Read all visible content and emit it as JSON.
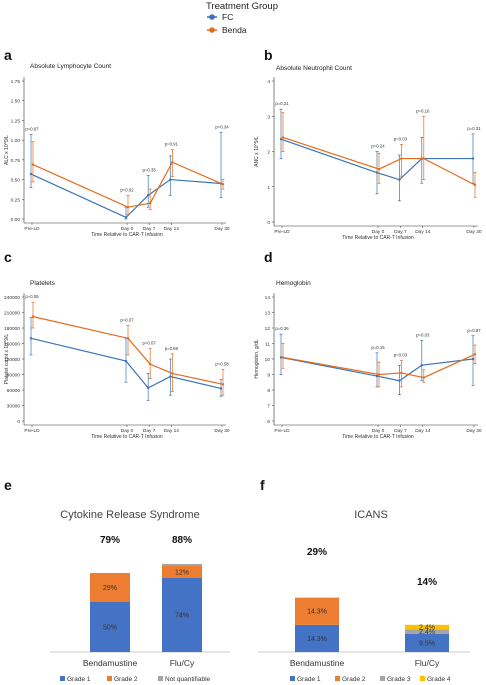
{
  "legend": {
    "title": "Treatment Group",
    "items": [
      {
        "label": "FC",
        "color": "#3b73b9"
      },
      {
        "label": "Benda",
        "color": "#e36c1b"
      }
    ]
  },
  "chart_data": [
    {
      "panel": "a",
      "type": "line",
      "title": "Absolute Lymphocyte Count",
      "xlabel": "Time Relative to CAR-T Infusion",
      "ylabel": "ALC x 10^9/L",
      "categories": [
        "Pre-LD",
        "Day 0",
        "Day 7",
        "Day 14",
        "Day 30"
      ],
      "x_positions": [
        -30,
        0,
        7,
        14,
        30
      ],
      "ylim": [
        0,
        1.75
      ],
      "yticks": [
        "0.00",
        "0.25",
        "0.50",
        "0.75",
        "1.00",
        "1.25",
        "1.50",
        "1.75"
      ],
      "series": [
        {
          "name": "FC",
          "color": "#3b73b9",
          "values": [
            0.57,
            0.02,
            0.3,
            0.5,
            0.45
          ],
          "err": [
            [
              0.4,
              1.07
            ],
            [
              0.0,
              0.15
            ],
            [
              0.15,
              0.55
            ],
            [
              0.3,
              0.8
            ],
            [
              0.27,
              1.1
            ]
          ]
        },
        {
          "name": "Benda",
          "color": "#e36c1b",
          "values": [
            0.69,
            0.15,
            0.2,
            0.72,
            0.44
          ],
          "err": [
            [
              0.47,
              0.98
            ],
            [
              0.06,
              0.3
            ],
            [
              0.12,
              0.38
            ],
            [
              0.54,
              0.88
            ],
            [
              0.38,
              0.5
            ]
          ]
        }
      ],
      "annotations": [
        "p=0.97",
        "p=0.02",
        "p=0.35",
        "p=0.91",
        "p=0.34"
      ]
    },
    {
      "panel": "b",
      "type": "line",
      "title": "Absolute Neutrophil Count",
      "xlabel": "Time Relative to CAR-T Infusion",
      "ylabel": "ANC x 10^9/L",
      "categories": [
        "Pre-LD",
        "Day 0",
        "Day 7",
        "Day 14",
        "Day 30"
      ],
      "x_positions": [
        -30,
        0,
        7,
        14,
        30
      ],
      "ylim": [
        0,
        4
      ],
      "yticks": [
        "0",
        "1",
        "2",
        "3",
        "4"
      ],
      "series": [
        {
          "name": "FC",
          "color": "#3b73b9",
          "values": [
            2.35,
            1.4,
            1.2,
            1.8,
            1.8
          ],
          "err": [
            [
              1.8,
              3.2
            ],
            [
              0.8,
              2.0
            ],
            [
              0.6,
              1.9
            ],
            [
              1.1,
              2.4
            ],
            [
              1.1,
              2.5
            ]
          ]
        },
        {
          "name": "Benda",
          "color": "#e36c1b",
          "values": [
            2.4,
            1.5,
            1.8,
            1.8,
            1.05
          ],
          "err": [
            [
              2.0,
              3.1
            ],
            [
              1.1,
              1.95
            ],
            [
              1.3,
              2.2
            ],
            [
              1.2,
              3.0
            ],
            [
              0.7,
              1.4
            ]
          ]
        }
      ],
      "annotations": [
        "p=0.21",
        "p=0.24",
        "p=0.03",
        "p=0.16",
        "p=0.31"
      ]
    },
    {
      "panel": "c",
      "type": "line",
      "title": "Platelets",
      "xlabel": "Time Relative to CAR-T Infusion",
      "ylabel": "Platelet count x 10^9/L",
      "categories": [
        "Pre-LD",
        "Day 0",
        "Day 7",
        "Day 14",
        "Day 30"
      ],
      "x_positions": [
        -30,
        0,
        7,
        14,
        30
      ],
      "ylim": [
        0,
        240000
      ],
      "yticks": [
        "0",
        "30000",
        "60000",
        "90000",
        "120000",
        "150000",
        "180000",
        "210000",
        "240000"
      ],
      "series": [
        {
          "name": "FC",
          "color": "#3b73b9",
          "values": [
            160000,
            116000,
            64000,
            86000,
            63000
          ],
          "err": [
            [
              128000,
              200000
            ],
            [
              75000,
              160000
            ],
            [
              40000,
              92000
            ],
            [
              50000,
              120000
            ],
            [
              48000,
              80000
            ]
          ]
        },
        {
          "name": "Benda",
          "color": "#e36c1b",
          "values": [
            202000,
            160000,
            110000,
            92000,
            71000
          ],
          "err": [
            [
              180000,
              230000
            ],
            [
              128000,
              185000
            ],
            [
              82000,
              140000
            ],
            [
              57000,
              130000
            ],
            [
              50000,
              100000
            ]
          ]
        }
      ],
      "annotations": [
        "p=0.06",
        "p=0.07",
        "p=0.07",
        "p=0.69",
        "p=0.58"
      ]
    },
    {
      "panel": "d",
      "type": "line",
      "title": "Hemoglobin",
      "xlabel": "Time Relative to CAR-T Infusion",
      "ylabel": "Hemoglobin, g/dL",
      "categories": [
        "Pre-LD",
        "Day 0",
        "Day 7",
        "Day 14",
        "Day 30"
      ],
      "x_positions": [
        -30,
        0,
        7,
        14,
        30
      ],
      "ylim": [
        6,
        14
      ],
      "yticks": [
        "6",
        "7",
        "8",
        "9",
        "10",
        "11",
        "12",
        "13",
        "14"
      ],
      "series": [
        {
          "name": "FC",
          "color": "#3b73b9",
          "values": [
            10.1,
            8.9,
            8.6,
            9.6,
            10.0
          ],
          "err": [
            [
              9.0,
              11.6
            ],
            [
              8.2,
              10.4
            ],
            [
              7.7,
              9.6
            ],
            [
              8.6,
              11.2
            ],
            [
              8.3,
              11.5
            ]
          ]
        },
        {
          "name": "Benda",
          "color": "#e36c1b",
          "values": [
            10.1,
            9.0,
            9.1,
            8.8,
            10.3
          ],
          "err": [
            [
              9.4,
              11.0
            ],
            [
              8.2,
              9.8
            ],
            [
              8.2,
              9.9
            ],
            [
              8.5,
              9.3
            ],
            [
              9.7,
              10.9
            ]
          ]
        }
      ],
      "annotations": [
        "p=0.36",
        "p=0.15",
        "p=0.03",
        "p=0.03",
        "p=0.87"
      ]
    },
    {
      "panel": "e",
      "type": "bar",
      "title": "Cytokine Release Syndrome",
      "categories": [
        "Bendamustine",
        "Flu/Cy"
      ],
      "totals": [
        "79%",
        "88%"
      ],
      "ylim": [
        0,
        100
      ],
      "series": [
        {
          "name": "Grade 1",
          "color": "#4472c4",
          "values": [
            50,
            74
          ],
          "labels": [
            "50%",
            "74%"
          ]
        },
        {
          "name": "Grade 2",
          "color": "#ed7d31",
          "values": [
            29,
            12
          ],
          "labels": [
            "29%",
            "12%"
          ]
        },
        {
          "name": "Not quantifiable",
          "color": "#a5a5a5",
          "values": [
            0,
            2
          ],
          "labels": [
            "",
            ""
          ]
        }
      ]
    },
    {
      "panel": "f",
      "type": "bar",
      "title": "ICANS",
      "categories": [
        "Bendamustine",
        "Flu/Cy"
      ],
      "totals": [
        "29%",
        "14%"
      ],
      "ylim": [
        0,
        100
      ],
      "series": [
        {
          "name": "Grade 1",
          "color": "#4472c4",
          "values": [
            14.3,
            9.5
          ],
          "labels": [
            "14.3%",
            "9.5%"
          ]
        },
        {
          "name": "Grade 2",
          "color": "#ed7d31",
          "values": [
            14.3,
            0
          ],
          "labels": [
            "14.3%",
            ""
          ]
        },
        {
          "name": "Grade 3",
          "color": "#a5a5a5",
          "values": [
            0,
            2.4
          ],
          "labels": [
            "",
            "2.4%"
          ]
        },
        {
          "name": "Grade 4",
          "color": "#ffc000",
          "values": [
            0,
            2.4
          ],
          "labels": [
            "",
            "2.4%"
          ]
        }
      ]
    }
  ]
}
